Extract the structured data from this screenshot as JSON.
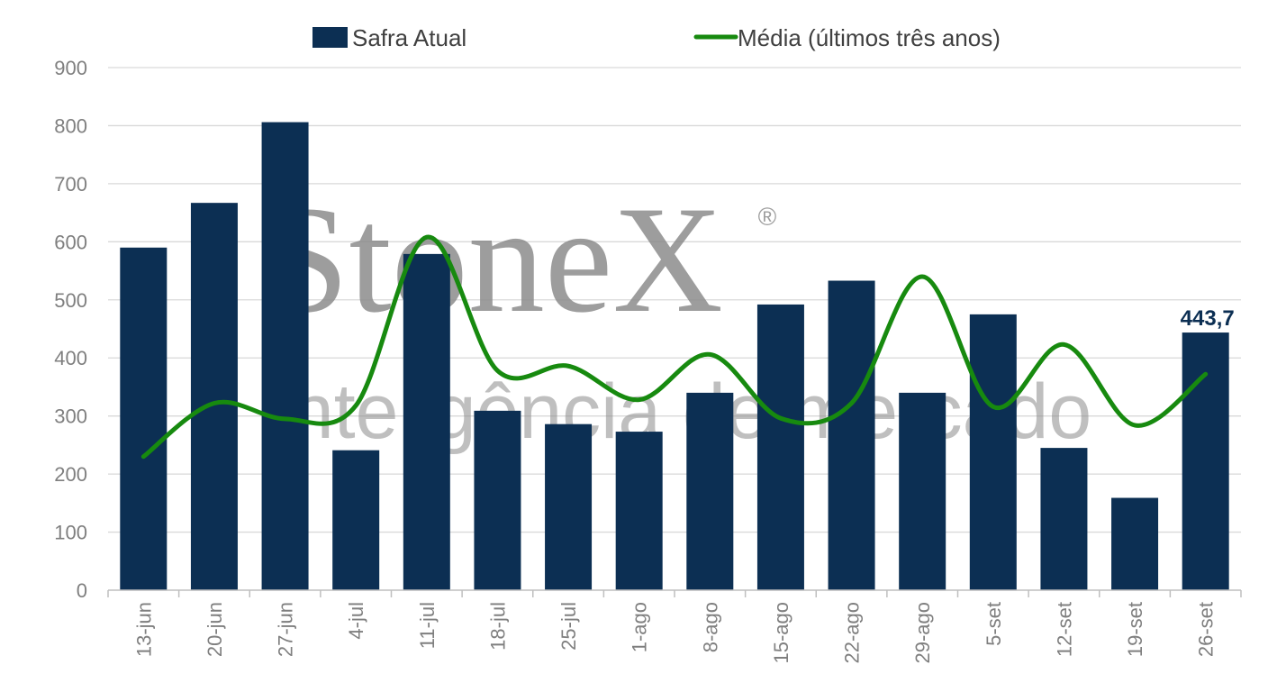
{
  "chart_data": {
    "type": "bar",
    "categories": [
      "13-jun",
      "20-jun",
      "27-jun",
      "4-jul",
      "11-jul",
      "18-jul",
      "25-jul",
      "1-ago",
      "8-ago",
      "15-ago",
      "22-ago",
      "29-ago",
      "5-set",
      "12-set",
      "19-set",
      "26-set"
    ],
    "series": [
      {
        "name": "Safra Atual",
        "type": "bar",
        "color": "#0c2f53",
        "values": [
          590,
          667,
          806,
          241,
          579,
          309,
          286,
          273,
          340,
          492,
          533,
          340,
          475,
          245,
          159,
          443.7
        ]
      },
      {
        "name": "Média (últimos três anos)",
        "type": "line",
        "color": "#178a0f",
        "values": [
          230,
          322,
          295,
          318,
          608,
          378,
          386,
          328,
          406,
          296,
          322,
          540,
          316,
          423,
          284,
          372
        ]
      }
    ],
    "data_labels": [
      {
        "series": "Safra Atual",
        "category": "26-set",
        "text": "443,7"
      }
    ],
    "yticks": [
      "0",
      "100",
      "200",
      "300",
      "400",
      "500",
      "600",
      "700",
      "800",
      "900"
    ],
    "ylim": [
      0,
      900
    ],
    "grid": true,
    "legend": "top",
    "watermark": {
      "brand": "StoneX",
      "registered": "®",
      "tagline": "inteligência de mercado"
    }
  }
}
